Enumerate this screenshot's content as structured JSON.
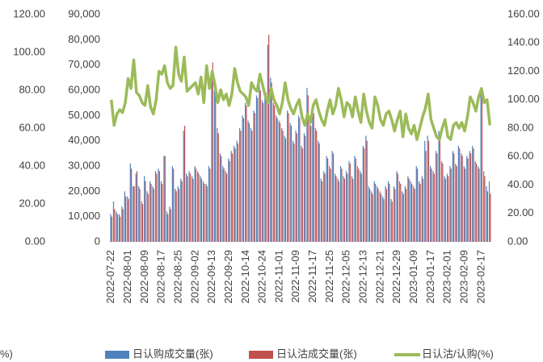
{
  "chart_data": {
    "type": "bar-line",
    "categories": [
      "2022-07-22",
      null,
      null,
      null,
      null,
      null,
      "2022-08-01",
      null,
      null,
      null,
      null,
      null,
      "2022-08-09",
      null,
      null,
      null,
      null,
      null,
      "2022-08-17",
      null,
      null,
      null,
      null,
      null,
      "2022-08-25",
      null,
      null,
      null,
      null,
      null,
      "2022-09-02",
      null,
      null,
      null,
      null,
      null,
      "2022-09-13",
      null,
      null,
      null,
      null,
      null,
      "2022-09-29",
      null,
      null,
      null,
      null,
      null,
      "2022-10-14",
      null,
      null,
      null,
      null,
      null,
      "2022-10-24",
      null,
      null,
      null,
      null,
      null,
      "2022-11-01",
      null,
      null,
      null,
      null,
      null,
      "2022-11-09",
      null,
      null,
      null,
      null,
      null,
      "2022-11-17",
      null,
      null,
      null,
      null,
      null,
      "2022-11-25",
      null,
      null,
      null,
      null,
      null,
      "2022-12-05",
      null,
      null,
      null,
      null,
      null,
      "2022-12-13",
      null,
      null,
      null,
      null,
      null,
      "2022-12-21",
      null,
      null,
      null,
      null,
      null,
      "2022-12-29",
      null,
      null,
      null,
      null,
      null,
      "2023-01-09",
      null,
      null,
      null,
      null,
      null,
      "2023-01-17",
      null,
      null,
      null,
      null,
      null,
      "2023-02-01",
      null,
      null,
      null,
      null,
      null,
      "2023-02-09",
      null,
      null,
      null,
      null,
      null,
      "2023-02-17",
      null,
      null,
      null
    ],
    "series": [
      {
        "name": "日认购成交量(张)",
        "color": "#4f81bd",
        "kind": "bar",
        "values": [
          11000,
          16000,
          12000,
          11000,
          14000,
          20000,
          18000,
          31000,
          22000,
          27000,
          22000,
          16000,
          26000,
          20000,
          24000,
          22000,
          28000,
          29000,
          24000,
          34000,
          12000,
          14000,
          30000,
          21000,
          22000,
          25000,
          44000,
          27000,
          28000,
          26000,
          30000,
          28000,
          26000,
          24000,
          23000,
          30000,
          65000,
          60000,
          45000,
          35000,
          30000,
          28000,
          33000,
          36000,
          38000,
          40000,
          45000,
          50000,
          55000,
          48000,
          45000,
          52000,
          58000,
          62000,
          56000,
          60000,
          78000,
          65000,
          55000,
          50000,
          48000,
          45000,
          42000,
          52000,
          47000,
          40000,
          44000,
          50000,
          38000,
          43000,
          61000,
          47000,
          52000,
          45000,
          40000,
          25000,
          28000,
          34000,
          30000,
          36000,
          27000,
          25000,
          30000,
          26000,
          28000,
          32000,
          26000,
          34000,
          30000,
          28000,
          38000,
          42000,
          22000,
          20000,
          24000,
          22000,
          20000,
          18000,
          22000,
          24000,
          17000,
          22000,
          28000,
          24000,
          20000,
          22000,
          26000,
          24000,
          22000,
          30000,
          24000,
          26000,
          40000,
          42000,
          30000,
          28000,
          36000,
          44000,
          32000,
          26000,
          27000,
          30000,
          36000,
          31000,
          38000,
          35000,
          30000,
          34000,
          36000,
          38000,
          32000,
          30000,
          60000,
          28000,
          22000,
          24000
        ]
      },
      {
        "name": "日认沽成交量(张)",
        "color": "#c0504d",
        "kind": "bar",
        "values": [
          10000,
          13000,
          11000,
          10000,
          13000,
          18000,
          17000,
          29000,
          22000,
          28000,
          21000,
          15000,
          24000,
          19000,
          23000,
          21000,
          27000,
          28000,
          23000,
          34000,
          11000,
          13000,
          29000,
          20000,
          21000,
          24000,
          46000,
          26000,
          27000,
          25000,
          29000,
          27000,
          25000,
          23000,
          22000,
          29000,
          71000,
          63000,
          43000,
          34000,
          29000,
          27000,
          32000,
          35000,
          37000,
          39000,
          44000,
          49000,
          54000,
          47000,
          44000,
          51000,
          57000,
          60000,
          55000,
          59000,
          82000,
          63000,
          54000,
          49000,
          47000,
          44000,
          41000,
          51000,
          46000,
          39000,
          43000,
          49000,
          37000,
          42000,
          58000,
          46000,
          51000,
          44000,
          39000,
          24000,
          27000,
          33000,
          29000,
          35000,
          26000,
          24000,
          29000,
          25000,
          27000,
          31000,
          25000,
          33000,
          29000,
          27000,
          37000,
          40000,
          21000,
          19000,
          23000,
          21000,
          19000,
          17000,
          21000,
          23000,
          16000,
          21000,
          27000,
          23000,
          19000,
          21000,
          25000,
          23000,
          21000,
          29000,
          23000,
          25000,
          36000,
          40000,
          29000,
          27000,
          35000,
          42000,
          31000,
          25000,
          26000,
          29000,
          35000,
          30000,
          37000,
          34000,
          29000,
          33000,
          35000,
          37000,
          31000,
          29000,
          58000,
          26000,
          20000,
          19000
        ]
      },
      {
        "name": "日认沽/认购(%)",
        "color": "#9bbb59",
        "kind": "line",
        "axis": "y2",
        "values": [
          100,
          82,
          90,
          93,
          91,
          98,
          115,
          108,
          128,
          105,
          103,
          98,
          96,
          110,
          95,
          90,
          100,
          120,
          118,
          124,
          112,
          108,
          110,
          137,
          118,
          113,
          130,
          106,
          108,
          110,
          112,
          104,
          116,
          98,
          124,
          108,
          120,
          110,
          98,
          107,
          100,
          104,
          96,
          104,
          122,
          112,
          106,
          104,
          102,
          96,
          112,
          108,
          106,
          118,
          110,
          102,
          98,
          108,
          100,
          96,
          90,
          98,
          112,
          100,
          94,
          90,
          96,
          100,
          88,
          82,
          90,
          84,
          96,
          100,
          92,
          86,
          82,
          92,
          100,
          90,
          96,
          108,
          100,
          88,
          98,
          96,
          88,
          102,
          92,
          84,
          104,
          92,
          84,
          80,
          102,
          96,
          86,
          82,
          90,
          92,
          86,
          78,
          86,
          92,
          74,
          90,
          80,
          76,
          82,
          72,
          80,
          88,
          94,
          104,
          86,
          80,
          74,
          72,
          80,
          86,
          74,
          72,
          82,
          84,
          80,
          84,
          78,
          88,
          102,
          98,
          92,
          102,
          108,
          98,
          100,
          82
        ]
      }
    ],
    "ylim": [
      0,
      90000
    ],
    "yticks": [
      0,
      {
        "value": 10000,
        "label": "10,000"
      },
      {
        "value": 20000,
        "label": "20,000"
      },
      {
        "value": 30000,
        "label": "30,000"
      },
      {
        "value": 40000,
        "label": "40,000"
      },
      {
        "value": 50000,
        "label": "50,000"
      },
      {
        "value": 60000,
        "label": "60,000"
      },
      {
        "value": 70000,
        "label": "70,000"
      },
      {
        "value": 80000,
        "label": "80,000"
      },
      {
        "value": 90000,
        "label": "90,000"
      }
    ],
    "y2lim": [
      0,
      160
    ],
    "y2ticks": [
      {
        "value": 0,
        "label": "0.00"
      },
      {
        "value": 20,
        "label": "20.00"
      },
      {
        "value": 40,
        "label": "40.00"
      },
      {
        "value": 60,
        "label": "60.00"
      },
      {
        "value": 80,
        "label": "80.00"
      },
      {
        "value": 100,
        "label": "100.00"
      },
      {
        "value": 120,
        "label": "120.00"
      },
      {
        "value": 140,
        "label": "140.00"
      },
      {
        "value": 160,
        "label": "160.00"
      }
    ],
    "y3lim": [
      0,
      120
    ],
    "y3ticks": [
      {
        "value": 0,
        "label": "0.00"
      },
      {
        "value": 20,
        "label": "20.00"
      },
      {
        "value": 40,
        "label": "40.00"
      },
      {
        "value": 60,
        "label": "60.00"
      },
      {
        "value": 80,
        "label": "80.00"
      },
      {
        "value": 100,
        "label": "100.00"
      },
      {
        "value": 120,
        "label": "120.00"
      }
    ],
    "clipped_legend_text": "%)",
    "legend": "bottom"
  }
}
